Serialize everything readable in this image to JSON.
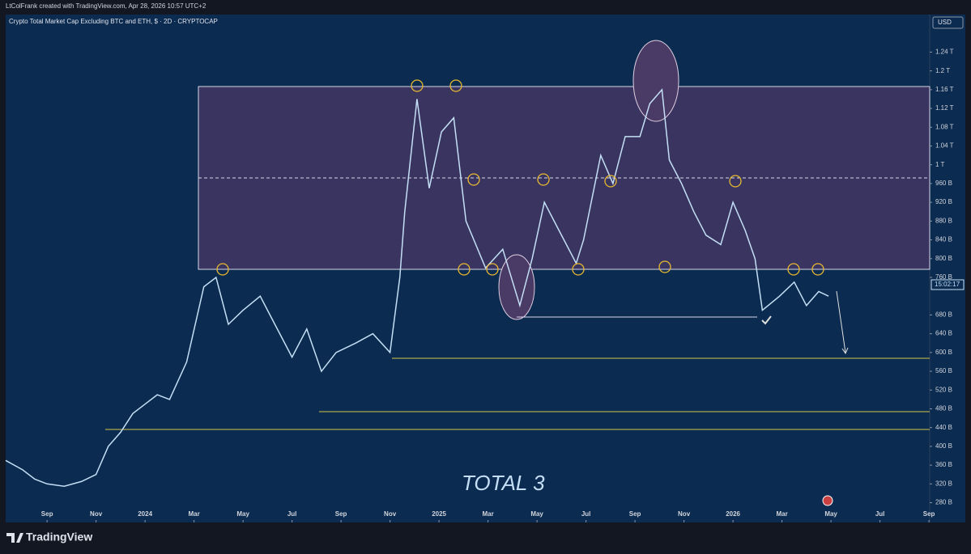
{
  "chart_data": {
    "type": "line",
    "title": "Crypto Total Market Cap Excluding BTC and ETH, $ · 2D · CRYPTOCAP",
    "credit": "LtColFrank created with TradingView.com, Apr 28, 2026 10:57 UTC+2",
    "currency": "USD",
    "annotation": "TOTAL 3",
    "countdown": "15:02:17",
    "brand": "TradingView",
    "series": [
      {
        "name": "TOTAL3",
        "color": "#c4dff5",
        "x": [
          -1.69,
          -1.0,
          -0.5,
          0,
          0.7,
          1.4,
          2.0,
          2.5,
          3.0,
          3.5,
          4.0,
          4.5,
          5.0,
          5.7,
          6.4,
          6.9,
          7.4,
          8.0,
          8.7,
          9.3,
          10.0,
          10.6,
          11.2,
          11.8,
          12.6,
          13.3,
          14.0,
          14.4,
          14.6,
          15.1,
          15.6,
          16.1,
          16.6,
          17.1,
          17.9,
          18.6,
          19.3,
          19.8,
          20.3,
          20.9,
          21.6,
          21.9,
          22.6,
          23.1,
          23.6,
          24.2,
          24.6,
          25.1,
          25.4,
          25.9,
          26.4,
          26.9,
          27.5,
          28.0,
          28.5,
          28.9,
          29.2,
          29.9,
          30.5,
          31.0,
          31.5,
          31.9
        ],
        "values": [
          370,
          350,
          330,
          320,
          315,
          325,
          340,
          400,
          430,
          470,
          490,
          510,
          500,
          580,
          740,
          760,
          660,
          690,
          720,
          660,
          590,
          650,
          560,
          600,
          620,
          640,
          600,
          760,
          900,
          1140,
          950,
          1070,
          1100,
          880,
          780,
          820,
          700,
          800,
          920,
          860,
          790,
          840,
          1020,
          960,
          1060,
          1060,
          1130,
          1160,
          1010,
          960,
          900,
          850,
          830,
          920,
          860,
          800,
          690,
          720,
          750,
          700,
          730,
          720
        ]
      }
    ],
    "xlim": [
      -1.69,
      36.03
    ],
    "xticks": [
      {
        "value": 0,
        "label": "Sep"
      },
      {
        "value": 2,
        "label": "Nov"
      },
      {
        "value": 4,
        "label": "2024"
      },
      {
        "value": 6,
        "label": "Mar"
      },
      {
        "value": 8,
        "label": "May"
      },
      {
        "value": 10,
        "label": "Jul"
      },
      {
        "value": 12,
        "label": "Sep"
      },
      {
        "value": 14,
        "label": "Nov"
      },
      {
        "value": 16,
        "label": "2025"
      },
      {
        "value": 18,
        "label": "Mar"
      },
      {
        "value": 20,
        "label": "May"
      },
      {
        "value": 22,
        "label": "Jul"
      },
      {
        "value": 24,
        "label": "Sep"
      },
      {
        "value": 26,
        "label": "Nov"
      },
      {
        "value": 28,
        "label": "2026"
      },
      {
        "value": 30,
        "label": "Mar"
      },
      {
        "value": 32,
        "label": "May"
      },
      {
        "value": 34,
        "label": "Jul"
      },
      {
        "value": 36,
        "label": "Sep"
      }
    ],
    "ylim": [
      262,
      1320
    ],
    "yticks": [
      {
        "value": 280,
        "label": "280 B"
      },
      {
        "value": 320,
        "label": "320 B"
      },
      {
        "value": 360,
        "label": "360 B"
      },
      {
        "value": 400,
        "label": "400 B"
      },
      {
        "value": 440,
        "label": "440 B"
      },
      {
        "value": 480,
        "label": "480 B"
      },
      {
        "value": 520,
        "label": "520 B"
      },
      {
        "value": 560,
        "label": "560 B"
      },
      {
        "value": 600,
        "label": "600 B"
      },
      {
        "value": 640,
        "label": "640 B"
      },
      {
        "value": 680,
        "label": "680 B"
      },
      {
        "value": 760,
        "label": "760 B"
      },
      {
        "value": 800,
        "label": "800 B"
      },
      {
        "value": 840,
        "label": "840 B"
      },
      {
        "value": 880,
        "label": "880 B"
      },
      {
        "value": 920,
        "label": "920 B"
      },
      {
        "value": 960,
        "label": "960 B"
      },
      {
        "value": 1000,
        "label": "1 T"
      },
      {
        "value": 1040,
        "label": "1.04 T"
      },
      {
        "value": 1080,
        "label": "1.08 T"
      },
      {
        "value": 1120,
        "label": "1.12 T"
      },
      {
        "value": 1160,
        "label": "1.16 T"
      },
      {
        "value": 1200,
        "label": "1.2 T"
      },
      {
        "value": 1240,
        "label": "1.24 T"
      }
    ]
  }
}
